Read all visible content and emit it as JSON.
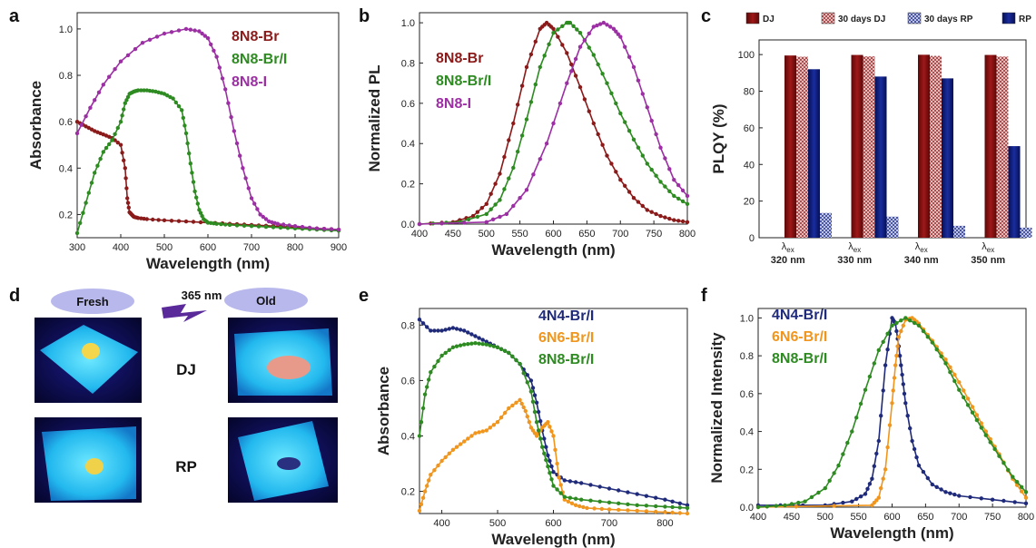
{
  "colors": {
    "br": "#8b1a1a",
    "bri": "#2e8b22",
    "i": "#9b2fa3",
    "n4": "#1f2a7a",
    "n6": "#f0961e",
    "dj": "#7a0d0d",
    "rp": "#0b1a7a",
    "pill": "#b8b8ec",
    "arrow": "#5a2a9a"
  },
  "panels": {
    "a": "a",
    "b": "b",
    "c": "c",
    "d": "d",
    "e": "e",
    "f": "f"
  },
  "chart_data": [
    {
      "id": "a",
      "type": "line",
      "xlabel": "Wavelength (nm)",
      "ylabel": "Absorbance",
      "xlim": [
        300,
        900
      ],
      "ylim": [
        0.1,
        1.07
      ],
      "xticks": [
        300,
        400,
        500,
        600,
        700,
        800,
        900
      ],
      "yticks": [
        0.2,
        0.4,
        0.6,
        0.8,
        1.0
      ],
      "legend_position": "top-right",
      "series": [
        {
          "name": "8N8-Br",
          "color": "br",
          "x": [
            300,
            320,
            340,
            360,
            380,
            400,
            410,
            415,
            420,
            425,
            430,
            440,
            460,
            500,
            550,
            600,
            650,
            700,
            750,
            800,
            850,
            900
          ],
          "y": [
            0.6,
            0.58,
            0.56,
            0.545,
            0.53,
            0.5,
            0.4,
            0.27,
            0.21,
            0.2,
            0.19,
            0.185,
            0.18,
            0.175,
            0.17,
            0.165,
            0.16,
            0.155,
            0.15,
            0.145,
            0.14,
            0.135
          ]
        },
        {
          "name": "8N8-Br/I",
          "color": "bri",
          "x": [
            300,
            320,
            340,
            360,
            380,
            400,
            410,
            420,
            430,
            440,
            460,
            480,
            500,
            520,
            540,
            550,
            560,
            570,
            580,
            590,
            600,
            620,
            650,
            700,
            750,
            800,
            850,
            900
          ],
          "y": [
            0.12,
            0.25,
            0.38,
            0.47,
            0.52,
            0.6,
            0.68,
            0.72,
            0.73,
            0.735,
            0.735,
            0.73,
            0.72,
            0.7,
            0.65,
            0.55,
            0.42,
            0.3,
            0.22,
            0.18,
            0.165,
            0.16,
            0.155,
            0.15,
            0.145,
            0.14,
            0.135,
            0.13
          ]
        },
        {
          "name": "8N8-I",
          "color": "i",
          "x": [
            300,
            330,
            360,
            400,
            450,
            500,
            550,
            580,
            600,
            620,
            640,
            660,
            680,
            700,
            720,
            740,
            760,
            800,
            850,
            900
          ],
          "y": [
            0.55,
            0.66,
            0.76,
            0.86,
            0.94,
            0.98,
            1.0,
            0.99,
            0.96,
            0.88,
            0.74,
            0.56,
            0.4,
            0.27,
            0.2,
            0.17,
            0.16,
            0.15,
            0.14,
            0.135
          ]
        }
      ]
    },
    {
      "id": "b",
      "type": "line",
      "xlabel": "Wavelength (nm)",
      "ylabel": "Normalized PL",
      "xlim": [
        400,
        800
      ],
      "ylim": [
        0,
        1.05
      ],
      "xticks": [
        400,
        450,
        500,
        550,
        600,
        650,
        700,
        750,
        800
      ],
      "yticks": [
        0.0,
        0.2,
        0.4,
        0.6,
        0.8,
        1.0
      ],
      "legend_position": "top-left",
      "series": [
        {
          "name": "8N8-Br",
          "color": "br",
          "x": [
            400,
            450,
            480,
            500,
            520,
            540,
            560,
            580,
            590,
            600,
            620,
            640,
            660,
            680,
            700,
            720,
            740,
            760,
            780,
            800
          ],
          "y": [
            0.0,
            0.01,
            0.04,
            0.1,
            0.25,
            0.5,
            0.78,
            0.97,
            1.0,
            0.97,
            0.85,
            0.68,
            0.5,
            0.34,
            0.22,
            0.13,
            0.07,
            0.04,
            0.02,
            0.01
          ]
        },
        {
          "name": "8N8-Br/I",
          "color": "bri",
          "x": [
            400,
            460,
            500,
            520,
            540,
            560,
            580,
            600,
            620,
            625,
            640,
            660,
            680,
            700,
            720,
            740,
            760,
            780,
            800
          ],
          "y": [
            0.0,
            0.01,
            0.05,
            0.12,
            0.28,
            0.52,
            0.78,
            0.95,
            1.0,
            1.0,
            0.95,
            0.84,
            0.7,
            0.55,
            0.42,
            0.3,
            0.21,
            0.14,
            0.1
          ]
        },
        {
          "name": "8N8-I",
          "color": "i",
          "x": [
            400,
            500,
            530,
            560,
            590,
            620,
            640,
            660,
            675,
            690,
            700,
            720,
            740,
            760,
            780,
            800
          ],
          "y": [
            0.0,
            0.01,
            0.05,
            0.17,
            0.4,
            0.7,
            0.88,
            0.98,
            1.0,
            0.97,
            0.93,
            0.78,
            0.58,
            0.38,
            0.22,
            0.14
          ]
        }
      ]
    },
    {
      "id": "c",
      "type": "bar",
      "xlabel": "",
      "ylabel": "PLQY (%)",
      "ylim": [
        0,
        108
      ],
      "yticks": [
        0,
        20,
        40,
        60,
        80,
        100
      ],
      "legend_position": "top",
      "categories": [
        {
          "sym": "λ",
          "sub": "ex",
          "nm": "320 nm"
        },
        {
          "sym": "λ",
          "sub": "ex",
          "nm": "330 nm"
        },
        {
          "sym": "λ",
          "sub": "ex",
          "nm": "340 nm"
        },
        {
          "sym": "λ",
          "sub": "ex",
          "nm": "350 nm"
        }
      ],
      "series": [
        {
          "name": "DJ",
          "style": "solid-dj",
          "values": [
            99.5,
            99.8,
            99.9,
            99.8
          ]
        },
        {
          "name": "30 days DJ",
          "style": "hatch-dj",
          "values": [
            98.8,
            99.0,
            99.3,
            98.9
          ]
        },
        {
          "name": "30 days RP",
          "style": "hatch-rp",
          "values": [
            13.5,
            11.5,
            6.5,
            5.5
          ]
        },
        {
          "name": "RP",
          "style": "solid-rp",
          "values": [
            92,
            88,
            87,
            50
          ]
        }
      ]
    },
    {
      "id": "e",
      "type": "line",
      "xlabel": "Wavelength (nm)",
      "ylabel": "Absorbance",
      "xlim": [
        360,
        840
      ],
      "ylim": [
        0.12,
        0.86
      ],
      "xticks": [
        400,
        500,
        600,
        700,
        800
      ],
      "yticks": [
        0.2,
        0.4,
        0.6,
        0.8
      ],
      "legend_position": "top-right",
      "series": [
        {
          "name": "4N4-Br/I",
          "color": "n4",
          "x": [
            360,
            380,
            400,
            420,
            440,
            460,
            480,
            500,
            520,
            540,
            560,
            570,
            580,
            590,
            600,
            620,
            650,
            700,
            750,
            800,
            840
          ],
          "y": [
            0.82,
            0.78,
            0.78,
            0.79,
            0.78,
            0.76,
            0.74,
            0.72,
            0.7,
            0.66,
            0.6,
            0.52,
            0.42,
            0.33,
            0.27,
            0.24,
            0.23,
            0.21,
            0.19,
            0.17,
            0.15
          ]
        },
        {
          "name": "6N6-Br/I",
          "color": "n6",
          "x": [
            360,
            370,
            380,
            400,
            420,
            440,
            460,
            480,
            500,
            520,
            540,
            550,
            560,
            570,
            580,
            590,
            600,
            610,
            620,
            640,
            660,
            700,
            750,
            800,
            840
          ],
          "y": [
            0.13,
            0.2,
            0.26,
            0.31,
            0.35,
            0.38,
            0.41,
            0.42,
            0.45,
            0.5,
            0.53,
            0.49,
            0.43,
            0.4,
            0.43,
            0.45,
            0.4,
            0.25,
            0.17,
            0.15,
            0.14,
            0.135,
            0.13,
            0.125,
            0.12
          ]
        },
        {
          "name": "8N8-Br/I",
          "color": "bri",
          "x": [
            360,
            370,
            380,
            400,
            420,
            440,
            460,
            480,
            500,
            520,
            540,
            560,
            570,
            580,
            590,
            600,
            620,
            650,
            700,
            750,
            800,
            840
          ],
          "y": [
            0.4,
            0.55,
            0.63,
            0.69,
            0.72,
            0.73,
            0.735,
            0.73,
            0.72,
            0.7,
            0.66,
            0.56,
            0.45,
            0.36,
            0.29,
            0.22,
            0.18,
            0.17,
            0.16,
            0.15,
            0.145,
            0.14
          ]
        }
      ]
    },
    {
      "id": "f",
      "type": "line",
      "xlabel": "Wavelength (nm)",
      "ylabel": "Normalized Intensity",
      "xlim": [
        400,
        800
      ],
      "ylim": [
        0,
        1.05
      ],
      "xticks": [
        400,
        450,
        500,
        550,
        600,
        650,
        700,
        750,
        800
      ],
      "yticks": [
        0.0,
        0.2,
        0.4,
        0.6,
        0.8,
        1.0
      ],
      "legend_position": "top-left",
      "series": [
        {
          "name": "4N4-Br/I",
          "color": "n4",
          "x": [
            400,
            500,
            540,
            560,
            570,
            580,
            590,
            600,
            605,
            610,
            615,
            620,
            630,
            640,
            660,
            680,
            700,
            750,
            800
          ],
          "y": [
            0.01,
            0.01,
            0.03,
            0.07,
            0.15,
            0.35,
            0.75,
            1.0,
            0.97,
            0.85,
            0.7,
            0.55,
            0.35,
            0.22,
            0.12,
            0.08,
            0.06,
            0.04,
            0.02
          ]
        },
        {
          "name": "6N6-Br/I",
          "color": "n6",
          "x": [
            400,
            570,
            580,
            590,
            600,
            605,
            610,
            620,
            630,
            640,
            660,
            680,
            700,
            720,
            740,
            760,
            780,
            800
          ],
          "y": [
            0.0,
            0.01,
            0.05,
            0.2,
            0.55,
            0.75,
            0.9,
            0.99,
            1.0,
            0.97,
            0.88,
            0.78,
            0.66,
            0.53,
            0.4,
            0.28,
            0.15,
            0.05
          ]
        },
        {
          "name": "8N8-Br/I",
          "color": "bri",
          "x": [
            400,
            440,
            470,
            500,
            520,
            540,
            560,
            580,
            600,
            620,
            640,
            660,
            680,
            700,
            720,
            740,
            760,
            780,
            800
          ],
          "y": [
            0.0,
            0.01,
            0.03,
            0.1,
            0.22,
            0.4,
            0.62,
            0.83,
            0.96,
            1.0,
            0.96,
            0.87,
            0.76,
            0.62,
            0.5,
            0.38,
            0.27,
            0.16,
            0.08
          ]
        }
      ]
    }
  ],
  "photos": {
    "fresh": "Fresh",
    "old": "Old",
    "uv": "365 nm",
    "dj": "DJ",
    "rp": "RP"
  }
}
